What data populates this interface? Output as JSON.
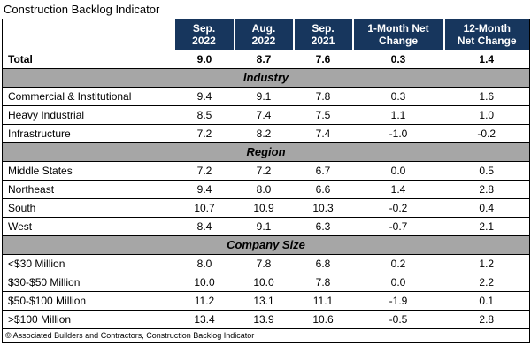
{
  "title": "Construction Backlog Indicator",
  "footer": "© Associated Builders and Contractors, Construction Backlog Indicator",
  "colors": {
    "header_bg": "#17365D",
    "header_text": "#FFFFFF",
    "section_bg": "#A6A6A6",
    "border": "#000000"
  },
  "header": {
    "cols": [
      {
        "l1": "Sep.",
        "l2": "2022"
      },
      {
        "l1": "Aug.",
        "l2": "2022"
      },
      {
        "l1": "Sep.",
        "l2": "2021"
      },
      {
        "l1": "1-Month Net",
        "l2": "Change"
      },
      {
        "l1": "12-Month",
        "l2": "Net Change"
      }
    ]
  },
  "chart_data": {
    "type": "table",
    "title": "Construction Backlog Indicator",
    "columns": [
      "",
      "Sep. 2022",
      "Aug. 2022",
      "Sep. 2021",
      "1-Month Net Change",
      "12-Month Net Change"
    ],
    "rows": [
      {
        "type": "total",
        "label": "Total",
        "values": [
          "9.0",
          "8.7",
          "7.6",
          "0.3",
          "1.4"
        ]
      },
      {
        "type": "section",
        "label": "Industry"
      },
      {
        "type": "data",
        "label": "Commercial & Institutional",
        "values": [
          "9.4",
          "9.1",
          "7.8",
          "0.3",
          "1.6"
        ]
      },
      {
        "type": "data",
        "label": "Heavy Industrial",
        "values": [
          "8.5",
          "7.4",
          "7.5",
          "1.1",
          "1.0"
        ]
      },
      {
        "type": "data",
        "label": "Infrastructure",
        "values": [
          "7.2",
          "8.2",
          "7.4",
          "-1.0",
          "-0.2"
        ]
      },
      {
        "type": "section",
        "label": "Region"
      },
      {
        "type": "data",
        "label": "Middle States",
        "values": [
          "7.2",
          "7.2",
          "6.7",
          "0.0",
          "0.5"
        ]
      },
      {
        "type": "data",
        "label": "Northeast",
        "values": [
          "9.4",
          "8.0",
          "6.6",
          "1.4",
          "2.8"
        ]
      },
      {
        "type": "data",
        "label": "South",
        "values": [
          "10.7",
          "10.9",
          "10.3",
          "-0.2",
          "0.4"
        ]
      },
      {
        "type": "data",
        "label": "West",
        "values": [
          "8.4",
          "9.1",
          "6.3",
          "-0.7",
          "2.1"
        ]
      },
      {
        "type": "section",
        "label": "Company Size"
      },
      {
        "type": "data",
        "label": "<$30 Million",
        "values": [
          "8.0",
          "7.8",
          "6.8",
          "0.2",
          "1.2"
        ]
      },
      {
        "type": "data",
        "label": "$30-$50 Million",
        "values": [
          "10.0",
          "10.0",
          "7.8",
          "0.0",
          "2.2"
        ]
      },
      {
        "type": "data",
        "label": "$50-$100 Million",
        "values": [
          "11.2",
          "13.1",
          "11.1",
          "-1.9",
          "0.1"
        ]
      },
      {
        "type": "data",
        "label": ">$100 Million",
        "values": [
          "13.4",
          "13.9",
          "10.6",
          "-0.5",
          "2.8"
        ]
      }
    ]
  }
}
